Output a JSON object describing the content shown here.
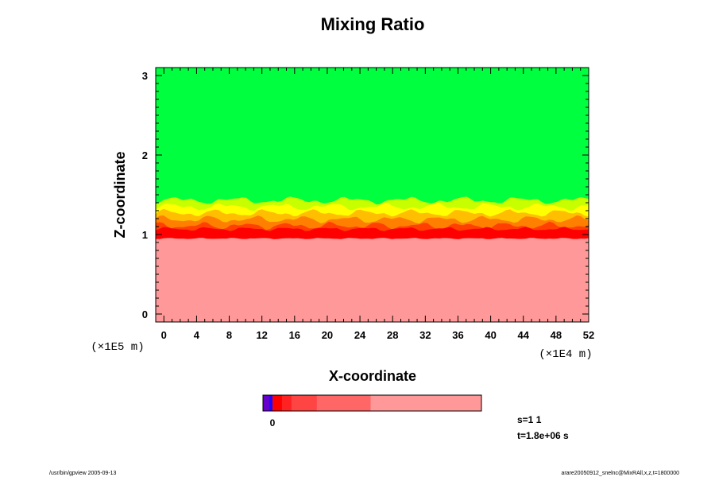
{
  "chart_data": {
    "type": "heatmap",
    "title": "Mixing Ratio",
    "xlabel": "X-coordinate",
    "ylabel": "Z-coordinate",
    "x_unit_label": "(×1E4 m)",
    "y_unit_label": "(×1E5 m)",
    "xlim": [
      -1,
      52
    ],
    "ylim": [
      -0.1,
      3.1
    ],
    "x_ticks": [
      0,
      4,
      8,
      12,
      16,
      20,
      24,
      28,
      32,
      36,
      40,
      44,
      48,
      52
    ],
    "y_ticks": [
      0,
      1,
      2,
      3
    ],
    "layers": [
      {
        "name": "upper",
        "z_from": 1.45,
        "z_to": 3.1,
        "color": "#00ff3f"
      },
      {
        "name": "transition",
        "z_from": 1.05,
        "z_to": 1.45,
        "colors": [
          "#c8ff00",
          "#ffff00",
          "#ffbf00",
          "#ff7f00",
          "#ff4000"
        ]
      },
      {
        "name": "interface",
        "z_from": 0.95,
        "z_to": 1.05,
        "color": "#ff0000"
      },
      {
        "name": "lower",
        "z_from": -0.1,
        "z_to": 0.95,
        "color": "#ff9999"
      }
    ],
    "colorbar": {
      "labels": [
        "0"
      ],
      "segments": [
        {
          "color": "#6600cc",
          "weight": 1
        },
        {
          "color": "#1a0aff",
          "weight": 0.5
        },
        {
          "color": "#ff0000",
          "weight": 1.5
        },
        {
          "color": "#ff2222",
          "weight": 1.5
        },
        {
          "color": "#ff4444",
          "weight": 4
        },
        {
          "color": "#ff6666",
          "weight": 8.5
        },
        {
          "color": "#ff9999",
          "weight": 17.5
        }
      ]
    }
  },
  "info": {
    "step": "s=1 1",
    "time": "t=1.8e+06 s"
  },
  "footer": {
    "left": "/usr/bin/gpview 2005-09-13",
    "right": "arare20050912_snelnc@MixRAll,x,z,t=1800000"
  }
}
